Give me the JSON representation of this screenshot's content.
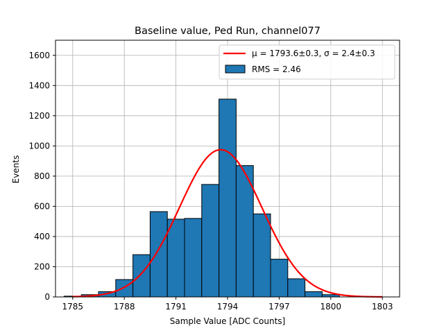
{
  "chart_data": {
    "type": "bar",
    "title": "Baseline value, Ped Run, channel077",
    "xlabel": "Sample Value [ADC Counts]",
    "ylabel": "Events",
    "xlim": [
      1784,
      1804
    ],
    "ylim": [
      0,
      1700
    ],
    "xticks": [
      1785,
      1788,
      1791,
      1794,
      1797,
      1800,
      1803
    ],
    "yticks": [
      0,
      200,
      400,
      600,
      800,
      1000,
      1200,
      1400,
      1600
    ],
    "grid": true,
    "legend_position": "top-right",
    "histogram": {
      "name": "RMS = 2.46",
      "color": "#1f77b4",
      "edgecolor": "#000000",
      "bin_edges": [
        1784.5,
        1785.5,
        1786.5,
        1787.5,
        1788.5,
        1789.5,
        1790.5,
        1791.5,
        1792.5,
        1793.5,
        1794.5,
        1795.5,
        1796.5,
        1797.5,
        1798.5,
        1799.5,
        1800.5
      ],
      "counts": [
        5,
        15,
        35,
        115,
        280,
        565,
        515,
        520,
        745,
        1310,
        870,
        550,
        250,
        120,
        35,
        15
      ]
    },
    "fit": {
      "name": "μ = 1793.6±0.3, σ = 2.4±0.3",
      "type": "gaussian",
      "color": "#ff0000",
      "mu": 1793.6,
      "sigma": 2.4,
      "amplitude": 975,
      "x_range": [
        1785,
        1803
      ]
    }
  }
}
